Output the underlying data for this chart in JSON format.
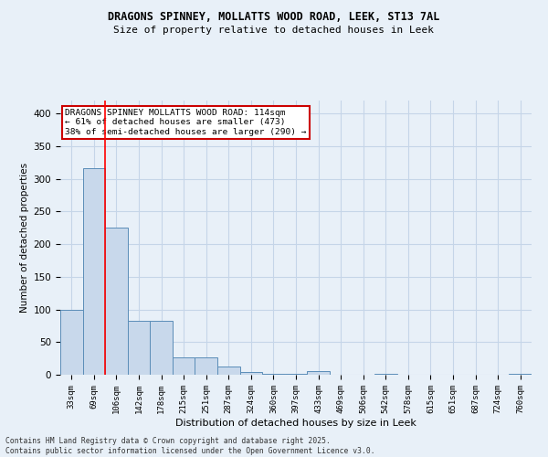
{
  "title1": "DRAGONS SPINNEY, MOLLATTS WOOD ROAD, LEEK, ST13 7AL",
  "title2": "Size of property relative to detached houses in Leek",
  "xlabel": "Distribution of detached houses by size in Leek",
  "ylabel": "Number of detached properties",
  "categories": [
    "33sqm",
    "69sqm",
    "106sqm",
    "142sqm",
    "178sqm",
    "215sqm",
    "251sqm",
    "287sqm",
    "324sqm",
    "360sqm",
    "397sqm",
    "433sqm",
    "469sqm",
    "506sqm",
    "542sqm",
    "578sqm",
    "615sqm",
    "651sqm",
    "687sqm",
    "724sqm",
    "760sqm"
  ],
  "values": [
    100,
    317,
    225,
    82,
    82,
    27,
    27,
    12,
    4,
    2,
    2,
    5,
    0,
    0,
    2,
    0,
    0,
    0,
    0,
    0,
    2
  ],
  "bar_color": "#c8d8eb",
  "bar_edge_color": "#5b8db8",
  "grid_color": "#c5d5e8",
  "background_color": "#e8f0f8",
  "red_line_x": 1.5,
  "annotation_text": "DRAGONS SPINNEY MOLLATTS WOOD ROAD: 114sqm\n← 61% of detached houses are smaller (473)\n38% of semi-detached houses are larger (290) →",
  "annotation_box_color": "#ffffff",
  "annotation_box_edge": "#cc0000",
  "ylim": [
    0,
    420
  ],
  "yticks": [
    0,
    50,
    100,
    150,
    200,
    250,
    300,
    350,
    400
  ],
  "footer1": "Contains HM Land Registry data © Crown copyright and database right 2025.",
  "footer2": "Contains public sector information licensed under the Open Government Licence v3.0."
}
